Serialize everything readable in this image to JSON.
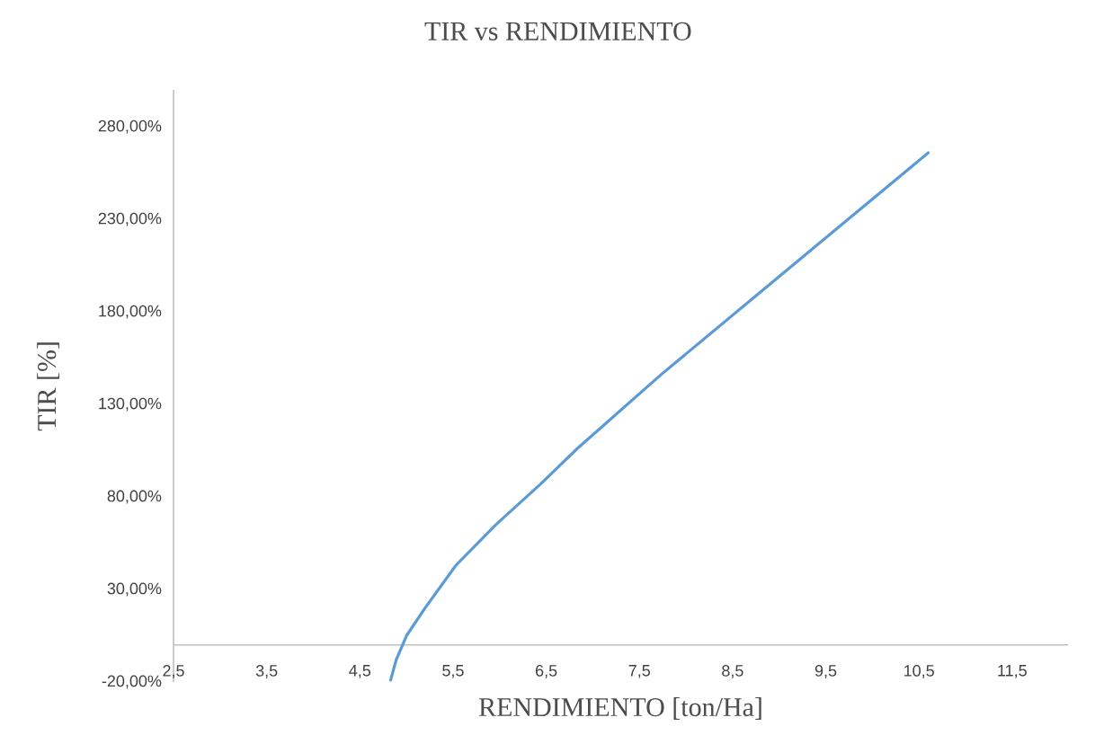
{
  "chart_data": {
    "type": "line",
    "title": "TIR vs RENDIMIENTO",
    "xlabel": "RENDIMIENTO [ton/Ha]",
    "ylabel": "TIR [%]",
    "xlim": [
      2.5,
      12.1
    ],
    "ylim": [
      -20,
      300
    ],
    "xticks": [
      {
        "value": 2.5,
        "label": "2,5"
      },
      {
        "value": 3.5,
        "label": "3,5"
      },
      {
        "value": 4.5,
        "label": "4,5"
      },
      {
        "value": 5.5,
        "label": "5,5"
      },
      {
        "value": 6.5,
        "label": "6,5"
      },
      {
        "value": 7.5,
        "label": "7,5"
      },
      {
        "value": 8.5,
        "label": "8,5"
      },
      {
        "value": 9.5,
        "label": "9,5"
      },
      {
        "value": 10.5,
        "label": "10,5"
      },
      {
        "value": 11.5,
        "label": "11,5"
      }
    ],
    "yticks": [
      {
        "value": -20,
        "label": "-20,00%"
      },
      {
        "value": 30,
        "label": "30,00%"
      },
      {
        "value": 80,
        "label": "80,00%"
      },
      {
        "value": 130,
        "label": "130,00%"
      },
      {
        "value": 180,
        "label": "180,00%"
      },
      {
        "value": 230,
        "label": "230,00%"
      },
      {
        "value": 280,
        "label": "280,00%"
      }
    ],
    "grid": false,
    "marker": "none",
    "line_style": "solid",
    "series": [
      {
        "color": "#5b9bd5",
        "x": [
          4.83,
          4.89,
          5.0,
          5.2,
          5.53,
          5.96,
          6.44,
          6.83,
          7.73,
          9.02,
          10.6
        ],
        "values": [
          -19,
          -8,
          5,
          20,
          43,
          65,
          87,
          106,
          146,
          200,
          266
        ]
      }
    ]
  }
}
